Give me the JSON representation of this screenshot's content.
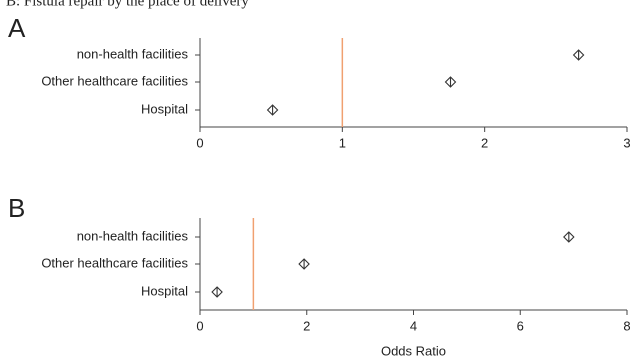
{
  "title": "B: Fistula repair by the place of delivery",
  "chart_data": [
    {
      "type": "dot",
      "panel_label": "A",
      "categories": [
        "non-health facilities",
        "Other healthcare facilities",
        "Hospital"
      ],
      "values": [
        2.66,
        1.76,
        0.51
      ],
      "xlim": [
        0,
        3
      ],
      "xticks": [
        0,
        1,
        2,
        3
      ],
      "reference_line": 1,
      "reference_color": "#f0a070",
      "color": "#333333"
    },
    {
      "type": "dot",
      "panel_label": "B",
      "categories": [
        "non-health facilities",
        "Other healthcare facilities",
        "Hospital"
      ],
      "values": [
        6.91,
        1.95,
        0.32
      ],
      "xlim": [
        0,
        8
      ],
      "xticks": [
        0,
        2,
        4,
        6,
        8
      ],
      "reference_line": 1,
      "reference_color": "#f0a070",
      "color": "#333333",
      "xlabel": "Odds Ratio"
    }
  ]
}
